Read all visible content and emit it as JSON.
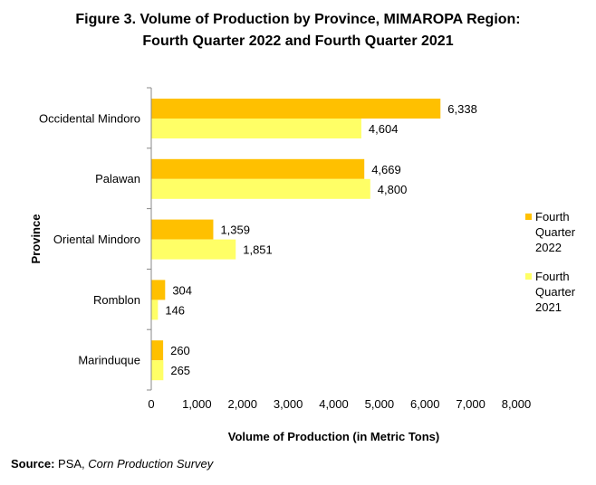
{
  "title_line1": "Figure 3. Volume of Production by Province, MIMAROPA Region:",
  "title_line2": "Fourth Quarter 2022 and Fourth Quarter 2021",
  "source": {
    "label": "Source:",
    "agency": "PSA,",
    "survey": "Corn Production Survey"
  },
  "chart_data": {
    "type": "bar",
    "orientation": "horizontal",
    "categories": [
      "Occidental Mindoro",
      "Palawan",
      "Oriental Mindoro",
      "Romblon",
      "Marinduque"
    ],
    "series": [
      {
        "name": "Fourth Quarter 2022",
        "legend_lines": [
          "Fourth",
          "Quarter",
          "2022"
        ],
        "color": "#FFC000",
        "values": [
          6338,
          4669,
          1359,
          304,
          260
        ],
        "labels": [
          "6,338",
          "4,669",
          "1,359",
          "304",
          "260"
        ]
      },
      {
        "name": "Fourth Quarter 2021",
        "legend_lines": [
          "Fourth",
          "Quarter",
          "2021"
        ],
        "color": "#FFFF66",
        "values": [
          4604,
          4800,
          1851,
          146,
          265
        ],
        "labels": [
          "4,604",
          "4,800",
          "1,851",
          "146",
          "265"
        ]
      }
    ],
    "xlabel": "Volume of Production (in Metric Tons)",
    "ylabel": "Province",
    "xlim": [
      0,
      8000
    ],
    "xticks": [
      0,
      1000,
      2000,
      3000,
      4000,
      5000,
      6000,
      7000,
      8000
    ],
    "xtick_labels": [
      "0",
      "1,000",
      "2,000",
      "3,000",
      "4,000",
      "5,000",
      "6,000",
      "7,000",
      "8,000"
    ],
    "grid": false,
    "legend_position": "right"
  }
}
